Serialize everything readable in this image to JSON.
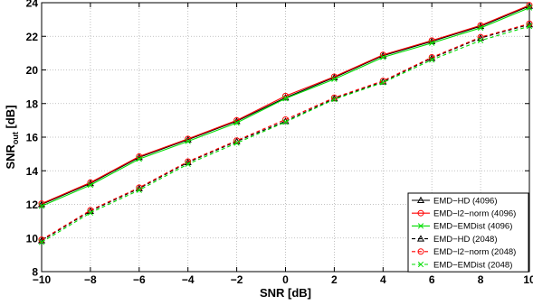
{
  "chart_data": {
    "type": "line",
    "xlabel": "SNR [dB]",
    "ylabel_main": "SNR",
    "ylabel_sub": "out",
    "ylabel_unit": " [dB]",
    "xlim": [
      -10,
      10
    ],
    "ylim": [
      8,
      24
    ],
    "xticks": [
      -10,
      -8,
      -6,
      -4,
      -2,
      0,
      2,
      4,
      6,
      8,
      10
    ],
    "yticks": [
      8,
      10,
      12,
      14,
      16,
      18,
      20,
      22,
      24
    ],
    "xtick_labels": [
      "−10",
      "−8",
      "−6",
      "−4",
      "−2",
      "0",
      "2",
      "4",
      "6",
      "8",
      "10"
    ],
    "ytick_labels": [
      "8",
      "10",
      "12",
      "14",
      "16",
      "18",
      "20",
      "22",
      "24"
    ],
    "grid": true,
    "legend_position": "bottom-right",
    "x": [
      -10,
      -8,
      -6,
      -4,
      -2,
      0,
      2,
      4,
      6,
      8,
      10
    ],
    "series": [
      {
        "name": "EMD−HD (4096)",
        "color": "#000000",
        "dash": "solid",
        "marker": "triangle",
        "values": [
          12.0,
          13.25,
          14.8,
          15.85,
          16.95,
          18.35,
          19.55,
          20.85,
          21.7,
          22.6,
          23.8
        ]
      },
      {
        "name": "EMD−l2−norm (4096)",
        "color": "#ff0000",
        "dash": "solid",
        "marker": "circle",
        "values": [
          12.05,
          13.3,
          14.85,
          15.9,
          17.0,
          18.45,
          19.6,
          20.9,
          21.75,
          22.65,
          23.85
        ]
      },
      {
        "name": "EMD−EMDist (4096)",
        "color": "#00dd00",
        "dash": "solid",
        "marker": "x",
        "values": [
          11.9,
          13.15,
          14.7,
          15.75,
          16.85,
          18.3,
          19.45,
          20.75,
          21.6,
          22.5,
          23.7
        ]
      },
      {
        "name": "EMD−HD (2048)",
        "color": "#000000",
        "dash": "dashed",
        "marker": "triangle",
        "values": [
          9.85,
          11.6,
          12.95,
          14.5,
          15.75,
          16.95,
          18.3,
          19.3,
          20.7,
          21.9,
          22.7
        ]
      },
      {
        "name": "EMD−l2−norm (2048)",
        "color": "#ff0000",
        "dash": "dashed",
        "marker": "circle",
        "values": [
          9.9,
          11.65,
          13.0,
          14.55,
          15.8,
          17.05,
          18.35,
          19.35,
          20.75,
          21.95,
          22.75
        ]
      },
      {
        "name": "EMD−EMDist (2048)",
        "color": "#00dd00",
        "dash": "dashed",
        "marker": "x",
        "values": [
          9.75,
          11.5,
          12.85,
          14.4,
          15.65,
          16.9,
          18.25,
          19.25,
          20.6,
          21.75,
          22.6
        ]
      }
    ]
  }
}
